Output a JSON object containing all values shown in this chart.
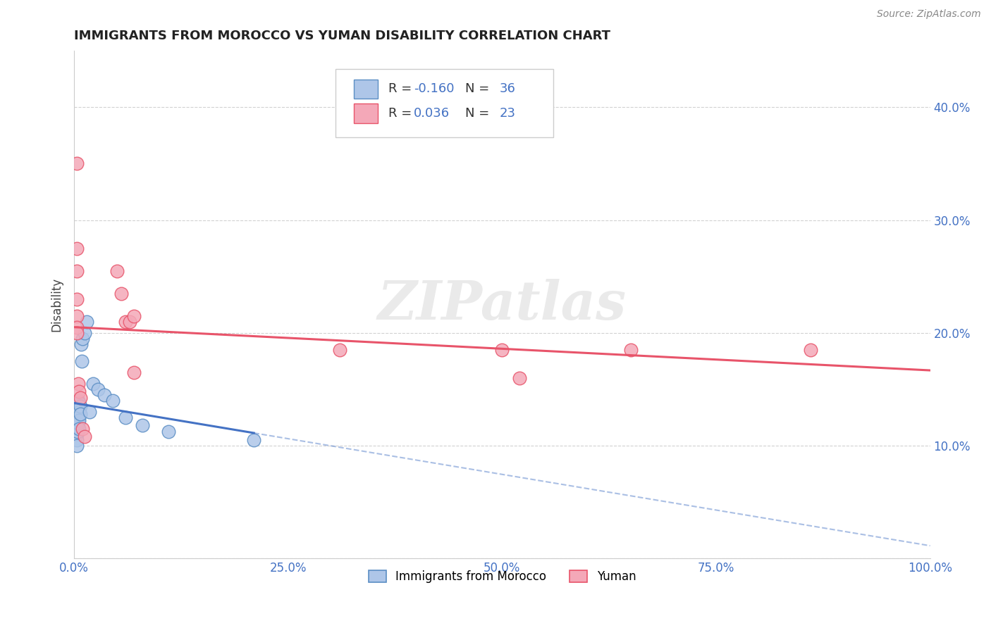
{
  "title": "IMMIGRANTS FROM MOROCCO VS YUMAN DISABILITY CORRELATION CHART",
  "source": "Source: ZipAtlas.com",
  "ylabel": "Disability",
  "xlim": [
    0.0,
    1.0
  ],
  "ylim": [
    0.0,
    0.45
  ],
  "x_ticks": [
    0.0,
    0.25,
    0.5,
    0.75,
    1.0
  ],
  "x_tick_labels": [
    "0.0%",
    "25.0%",
    "50.0%",
    "75.0%",
    "100.0%"
  ],
  "y_ticks": [
    0.0,
    0.1,
    0.2,
    0.3,
    0.4
  ],
  "y_tick_labels": [
    "",
    "10.0%",
    "20.0%",
    "30.0%",
    "40.0%"
  ],
  "legend_label_blue": "Immigrants from Morocco",
  "legend_label_pink": "Yuman",
  "blue_R": "-0.160",
  "blue_N": "36",
  "pink_R": "0.036",
  "pink_N": "23",
  "blue_color": "#aec6e8",
  "pink_color": "#f4a8b8",
  "blue_edge_color": "#5b8ec4",
  "pink_edge_color": "#e8546a",
  "blue_line_color": "#4472c4",
  "pink_line_color": "#e8546a",
  "blue_scatter": [
    [
      0.003,
      0.13
    ],
    [
      0.003,
      0.125
    ],
    [
      0.003,
      0.12
    ],
    [
      0.003,
      0.115
    ],
    [
      0.003,
      0.11
    ],
    [
      0.003,
      0.105
    ],
    [
      0.003,
      0.1
    ],
    [
      0.004,
      0.135
    ],
    [
      0.004,
      0.128
    ],
    [
      0.004,
      0.122
    ],
    [
      0.004,
      0.117
    ],
    [
      0.004,
      0.112
    ],
    [
      0.005,
      0.14
    ],
    [
      0.005,
      0.133
    ],
    [
      0.005,
      0.127
    ],
    [
      0.005,
      0.12
    ],
    [
      0.006,
      0.138
    ],
    [
      0.006,
      0.13
    ],
    [
      0.006,
      0.122
    ],
    [
      0.006,
      0.115
    ],
    [
      0.007,
      0.135
    ],
    [
      0.007,
      0.128
    ],
    [
      0.008,
      0.19
    ],
    [
      0.009,
      0.175
    ],
    [
      0.01,
      0.195
    ],
    [
      0.012,
      0.2
    ],
    [
      0.015,
      0.21
    ],
    [
      0.018,
      0.13
    ],
    [
      0.022,
      0.155
    ],
    [
      0.028,
      0.15
    ],
    [
      0.035,
      0.145
    ],
    [
      0.045,
      0.14
    ],
    [
      0.06,
      0.125
    ],
    [
      0.08,
      0.118
    ],
    [
      0.11,
      0.112
    ],
    [
      0.21,
      0.105
    ]
  ],
  "pink_scatter": [
    [
      0.003,
      0.35
    ],
    [
      0.003,
      0.275
    ],
    [
      0.003,
      0.255
    ],
    [
      0.003,
      0.23
    ],
    [
      0.003,
      0.215
    ],
    [
      0.003,
      0.205
    ],
    [
      0.003,
      0.2
    ],
    [
      0.005,
      0.155
    ],
    [
      0.006,
      0.148
    ],
    [
      0.007,
      0.142
    ],
    [
      0.01,
      0.115
    ],
    [
      0.012,
      0.108
    ],
    [
      0.05,
      0.255
    ],
    [
      0.055,
      0.235
    ],
    [
      0.06,
      0.21
    ],
    [
      0.065,
      0.21
    ],
    [
      0.07,
      0.215
    ],
    [
      0.07,
      0.165
    ],
    [
      0.31,
      0.185
    ],
    [
      0.5,
      0.185
    ],
    [
      0.52,
      0.16
    ],
    [
      0.65,
      0.185
    ],
    [
      0.86,
      0.185
    ]
  ],
  "watermark": "ZIPatlas",
  "background_color": "#ffffff",
  "grid_color": "#cccccc"
}
